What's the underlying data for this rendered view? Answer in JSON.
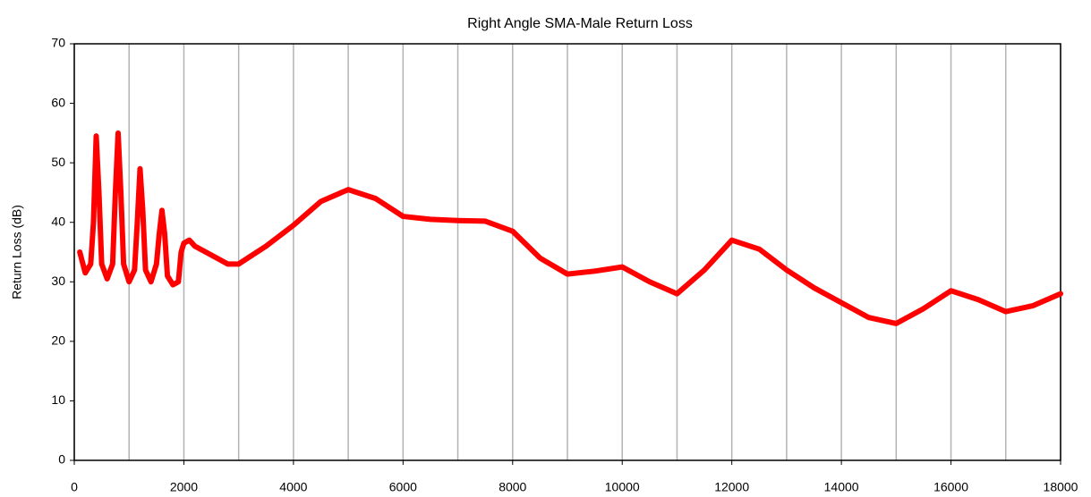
{
  "chart_data": {
    "type": "line",
    "title": "Right Angle SMA-Male Return Loss",
    "y_label": "Return Loss (dB)",
    "x": [
      100,
      200,
      300,
      350,
      400,
      450,
      500,
      600,
      700,
      750,
      800,
      850,
      900,
      1000,
      1100,
      1150,
      1200,
      1250,
      1300,
      1400,
      1500,
      1550,
      1600,
      1650,
      1700,
      1800,
      1900,
      1950,
      2000,
      2100,
      2200,
      2400,
      2600,
      2800,
      3000,
      3500,
      4000,
      4500,
      5000,
      5500,
      6000,
      6500,
      7000,
      7500,
      8000,
      8500,
      9000,
      9500,
      10000,
      10500,
      11000,
      11500,
      12000,
      12500,
      13000,
      13500,
      14000,
      14500,
      15000,
      15500,
      16000,
      16500,
      17000,
      17500,
      18000
    ],
    "series": [
      {
        "name": "Return Loss",
        "color": "#ff0000",
        "values": [
          35,
          31.5,
          33,
          40,
          54.5,
          45,
          33,
          30.5,
          33,
          45,
          55,
          45,
          33,
          30,
          32,
          40,
          49,
          42,
          32,
          30,
          33,
          38,
          42,
          38,
          31,
          29.5,
          30,
          35,
          36.5,
          37,
          36,
          35,
          34,
          33,
          33,
          36,
          39.5,
          43.5,
          45.5,
          44,
          41,
          40.5,
          40.3,
          40.2,
          38.5,
          34,
          31.3,
          31.8,
          32.5,
          30,
          28,
          32,
          37,
          35.5,
          32,
          29,
          26.5,
          24,
          23,
          25.5,
          28.5,
          27,
          25,
          26,
          28
        ]
      }
    ],
    "xlim": [
      0,
      18000
    ],
    "xticks": [
      0,
      2000,
      4000,
      6000,
      8000,
      10000,
      12000,
      14000,
      16000,
      18000
    ],
    "x_minor_grid": [
      1000,
      3000,
      5000,
      7000,
      9000,
      11000,
      13000,
      15000,
      17000
    ],
    "ylim": [
      0,
      70
    ],
    "yticks": [
      0,
      10,
      20,
      30,
      40,
      50,
      60,
      70
    ],
    "grid": true
  }
}
